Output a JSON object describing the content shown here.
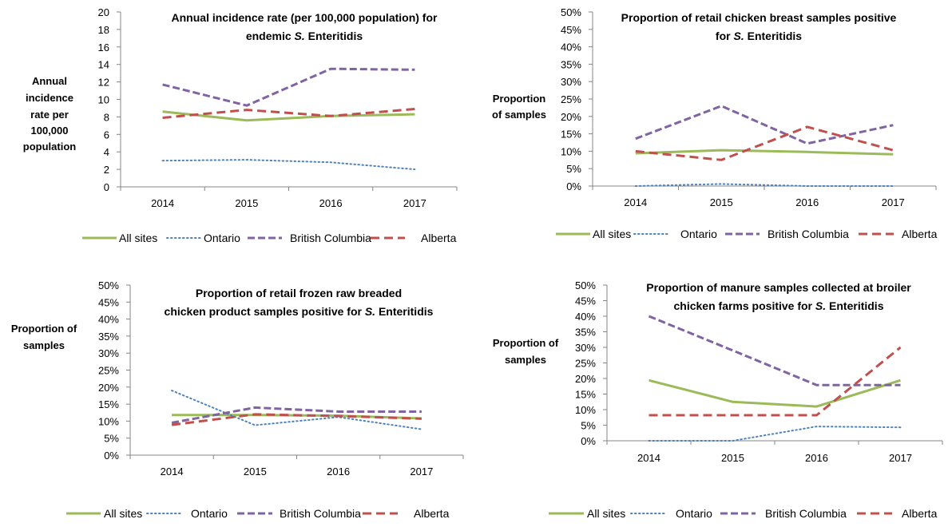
{
  "series_styles": [
    {
      "name": "All sites",
      "color": "#9BBB59",
      "dash": "none",
      "width": 3
    },
    {
      "name": "Ontario",
      "color": "#4F81BD",
      "dash": "1.5 3.5",
      "width": 2
    },
    {
      "name": "British Columbia",
      "color": "#8064A2",
      "dash": "9 4",
      "width": 3
    },
    {
      "name": "Alberta",
      "color": "#C0504D",
      "dash": "11 6",
      "width": 3
    }
  ],
  "chart_data": [
    {
      "type": "line",
      "title_lines": [
        [
          "Annual incidence rate (per 100,000 population) for"
        ],
        [
          "endemic ",
          {
            "i": "S."
          },
          " Enteritidis"
        ]
      ],
      "ylabel_lines": [
        "Annual",
        "incidence",
        "rate per",
        "100,000",
        "population"
      ],
      "categories": [
        "2014",
        "2015",
        "2016",
        "2017"
      ],
      "ylim": [
        0,
        20
      ],
      "yticks": [
        "0",
        "2",
        "4",
        "6",
        "8",
        "10",
        "12",
        "14",
        "16",
        "18",
        "20"
      ],
      "legend": [
        "All sites",
        "Ontario",
        "British Columbia",
        "Alberta"
      ],
      "series": [
        {
          "name": "All sites",
          "values": [
            8.6,
            7.6,
            8.1,
            8.3
          ]
        },
        {
          "name": "Ontario",
          "values": [
            3.0,
            3.1,
            2.8,
            2.0
          ]
        },
        {
          "name": "British Columbia",
          "values": [
            11.7,
            9.3,
            13.5,
            13.4
          ]
        },
        {
          "name": "Alberta",
          "values": [
            7.9,
            8.8,
            8.1,
            8.9
          ]
        }
      ]
    },
    {
      "type": "line",
      "title_lines": [
        [
          "Proportion of retail chicken breast samples positive"
        ],
        [
          "for ",
          {
            "i": "S."
          },
          " Enteritidis"
        ]
      ],
      "ylabel_lines": [
        "Proportion",
        "of samples"
      ],
      "categories": [
        "2014",
        "2015",
        "2016",
        "2017"
      ],
      "ylim": [
        0,
        50
      ],
      "yticks": [
        "0%",
        "5%",
        "10%",
        "15%",
        "20%",
        "25%",
        "30%",
        "35%",
        "40%",
        "45%",
        "50%"
      ],
      "legend": [
        "All sites",
        "Ontario",
        "British Columbia",
        "Alberta"
      ],
      "series": [
        {
          "name": "All sites",
          "values": [
            9.4,
            10.3,
            9.8,
            9.1
          ]
        },
        {
          "name": "Ontario",
          "values": [
            0,
            0.6,
            0,
            0
          ]
        },
        {
          "name": "British Columbia",
          "values": [
            13.6,
            23.0,
            12.2,
            17.5
          ]
        },
        {
          "name": "Alberta",
          "values": [
            10.0,
            7.5,
            17.0,
            10.3
          ]
        }
      ]
    },
    {
      "type": "line",
      "title_lines": [
        [
          "Proportion of retail frozen raw breaded"
        ],
        [
          "chicken product samples positive for ",
          {
            "i": "S."
          },
          " Enteritidis"
        ]
      ],
      "ylabel_lines": [
        "Proportion of",
        "samples"
      ],
      "categories": [
        "2014",
        "2015",
        "2016",
        "2017"
      ],
      "ylim": [
        0,
        50
      ],
      "yticks": [
        "0%",
        "5%",
        "10%",
        "15%",
        "20%",
        "25%",
        "30%",
        "35%",
        "40%",
        "45%",
        "50%"
      ],
      "legend": [
        "All sites",
        "Ontario",
        "British Columbia",
        "Alberta"
      ],
      "series": [
        {
          "name": "All sites",
          "values": [
            11.8,
            11.8,
            11.6,
            10.8
          ]
        },
        {
          "name": "Ontario",
          "values": [
            19.0,
            8.8,
            11.2,
            7.6
          ]
        },
        {
          "name": "British Columbia",
          "values": [
            9.5,
            14.0,
            12.8,
            12.8
          ]
        },
        {
          "name": "Alberta",
          "values": [
            8.9,
            12.0,
            11.5,
            10.7
          ]
        }
      ]
    },
    {
      "type": "line",
      "title_lines": [
        [
          "Proportion of manure samples collected at broiler"
        ],
        [
          "chicken farms positive for ",
          {
            "i": "S."
          },
          " Enteritidis"
        ]
      ],
      "ylabel_lines": [
        "Proportion of",
        "samples"
      ],
      "categories": [
        "2014",
        "2015",
        "2016",
        "2017"
      ],
      "ylim": [
        0,
        50
      ],
      "yticks": [
        "0%",
        "5%",
        "10%",
        "15%",
        "20%",
        "25%",
        "30%",
        "35%",
        "40%",
        "45%",
        "50%"
      ],
      "legend": [
        "All sites",
        "Ontario",
        "British Columbia",
        "Alberta"
      ],
      "series": [
        {
          "name": "All sites",
          "values": [
            19.4,
            12.5,
            11.0,
            19.4
          ]
        },
        {
          "name": "Ontario",
          "values": [
            0,
            0,
            4.6,
            4.3
          ]
        },
        {
          "name": "British Columbia",
          "values": [
            40.0,
            29.0,
            17.9,
            17.9
          ]
        },
        {
          "name": "Alberta",
          "values": [
            8.2,
            8.2,
            8.2,
            30.0
          ]
        }
      ]
    }
  ]
}
